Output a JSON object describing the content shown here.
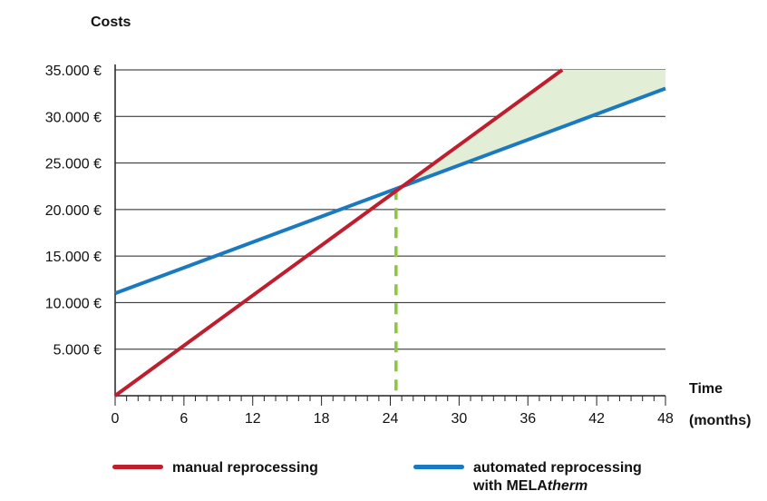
{
  "chart_data": {
    "type": "line",
    "ylabel": "Costs",
    "xlabel_line1": "Time",
    "xlabel_line2": "(months)",
    "x_ticks": [
      0,
      6,
      12,
      18,
      24,
      30,
      36,
      42,
      48
    ],
    "y_ticks": [
      5000,
      10000,
      15000,
      20000,
      25000,
      30000,
      35000
    ],
    "y_tick_labels": [
      "5.000 €",
      "10.000 €",
      "15.000 €",
      "20.000 €",
      "25.000 €",
      "30.000 €",
      "35.000 €"
    ],
    "xlim": [
      0,
      48
    ],
    "ylim": [
      0,
      35000
    ],
    "grid": "horizontal",
    "series": [
      {
        "name": "manual reprocessing",
        "color": "#be1e2d",
        "x": [
          0,
          39
        ],
        "y": [
          0,
          35000
        ]
      },
      {
        "name_prefix": "automated reprocessing",
        "name_line2_prefix": "with MELA",
        "name_line2_italic": "therm",
        "color": "#1a7abf",
        "x": [
          0,
          48
        ],
        "y": [
          11000,
          33000
        ]
      }
    ],
    "break_even": {
      "x": 24.5,
      "y": 22200,
      "color": "#8cc63f",
      "style": "dashed"
    },
    "savings_area_color": "#e2efd6",
    "legend_position": "bottom"
  }
}
